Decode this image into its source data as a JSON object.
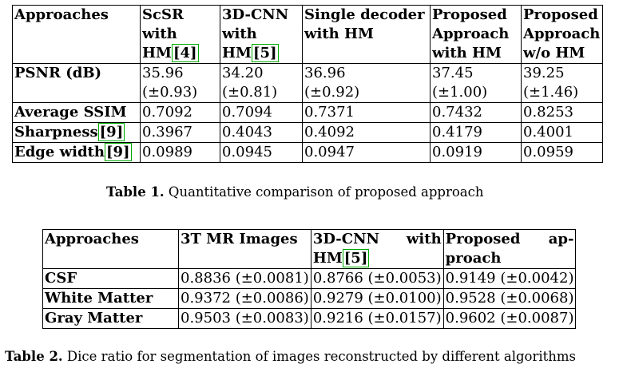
{
  "table1": {
    "header": {
      "c0": "Approaches",
      "c1_l1": "ScSR",
      "c1_l2": "with",
      "c1_l3": "HM",
      "c1_ref": "4",
      "c2_l1": "3D-CNN",
      "c2_l2": "with",
      "c2_l3": "HM",
      "c2_ref": "5",
      "c3_l1": "Single decoder",
      "c3_l2": "with HM",
      "c4_l1": "Proposed",
      "c4_l2": "Approach",
      "c4_l3": "with HM",
      "c5_l1": "Proposed",
      "c5_l2": "Approach",
      "c5_l3": "w/o HM"
    },
    "psnr": {
      "label": "PSNR (dB)",
      "v1": "35.96",
      "s1": "(±0.93)",
      "v2": "34.20",
      "s2": "(±0.81)",
      "v3": "36.96",
      "s3": "(±0.92)",
      "v4": "37.45",
      "s4": "(±1.00)",
      "v5": "39.25",
      "s5": "(±1.46)"
    },
    "ssim": {
      "label": "Average SSIM",
      "v1": "0.7092",
      "v2": "0.7094",
      "v3": "0.7371",
      "v4": "0.7432",
      "v5": "0.8253"
    },
    "sharpness": {
      "label": "Sharpness",
      "ref": "9",
      "v1": "0.3967",
      "v2": "0.4043",
      "v3": "0.4092",
      "v4": "0.4179",
      "v5": "0.4001"
    },
    "edge": {
      "label": "Edge width",
      "ref": "9",
      "v1": "0.0989",
      "v2": "0.0945",
      "v3": "0.0947",
      "v4": "0.0919",
      "v5": "0.0959"
    }
  },
  "caption1": {
    "prefix": "Table 1.",
    "text": " Quantitative comparison of proposed approach"
  },
  "table2": {
    "header": {
      "c0": "Approaches",
      "c1": "3T MR Images",
      "c2_l1a": "3D-CNN",
      "c2_l1b": "with",
      "c2_l2": "HM",
      "c2_ref": "5",
      "c3_l1a": "Proposed",
      "c3_l1b": "ap-",
      "c3_l2": "proach"
    },
    "csf": {
      "label": "CSF",
      "v1": "0.8836 (±0.0081)",
      "v2": "0.8766 (±0.0053)",
      "v3": "0.9149 (±0.0042)"
    },
    "wm": {
      "label": "White Matter",
      "v1": "0.9372 (±0.0086)",
      "v2": "0.9279 (±0.0100)",
      "v3": "0.9528 (±0.0068)"
    },
    "gm": {
      "label": "Gray Matter",
      "v1": "0.9503 (±0.0083)",
      "v2": "0.9216 (±0.0157)",
      "v3": "0.9602 (±0.0087)"
    }
  },
  "caption2": {
    "prefix": "Table 2.",
    "text": " Dice ratio for segmentation of images reconstructed by different algorithms"
  }
}
